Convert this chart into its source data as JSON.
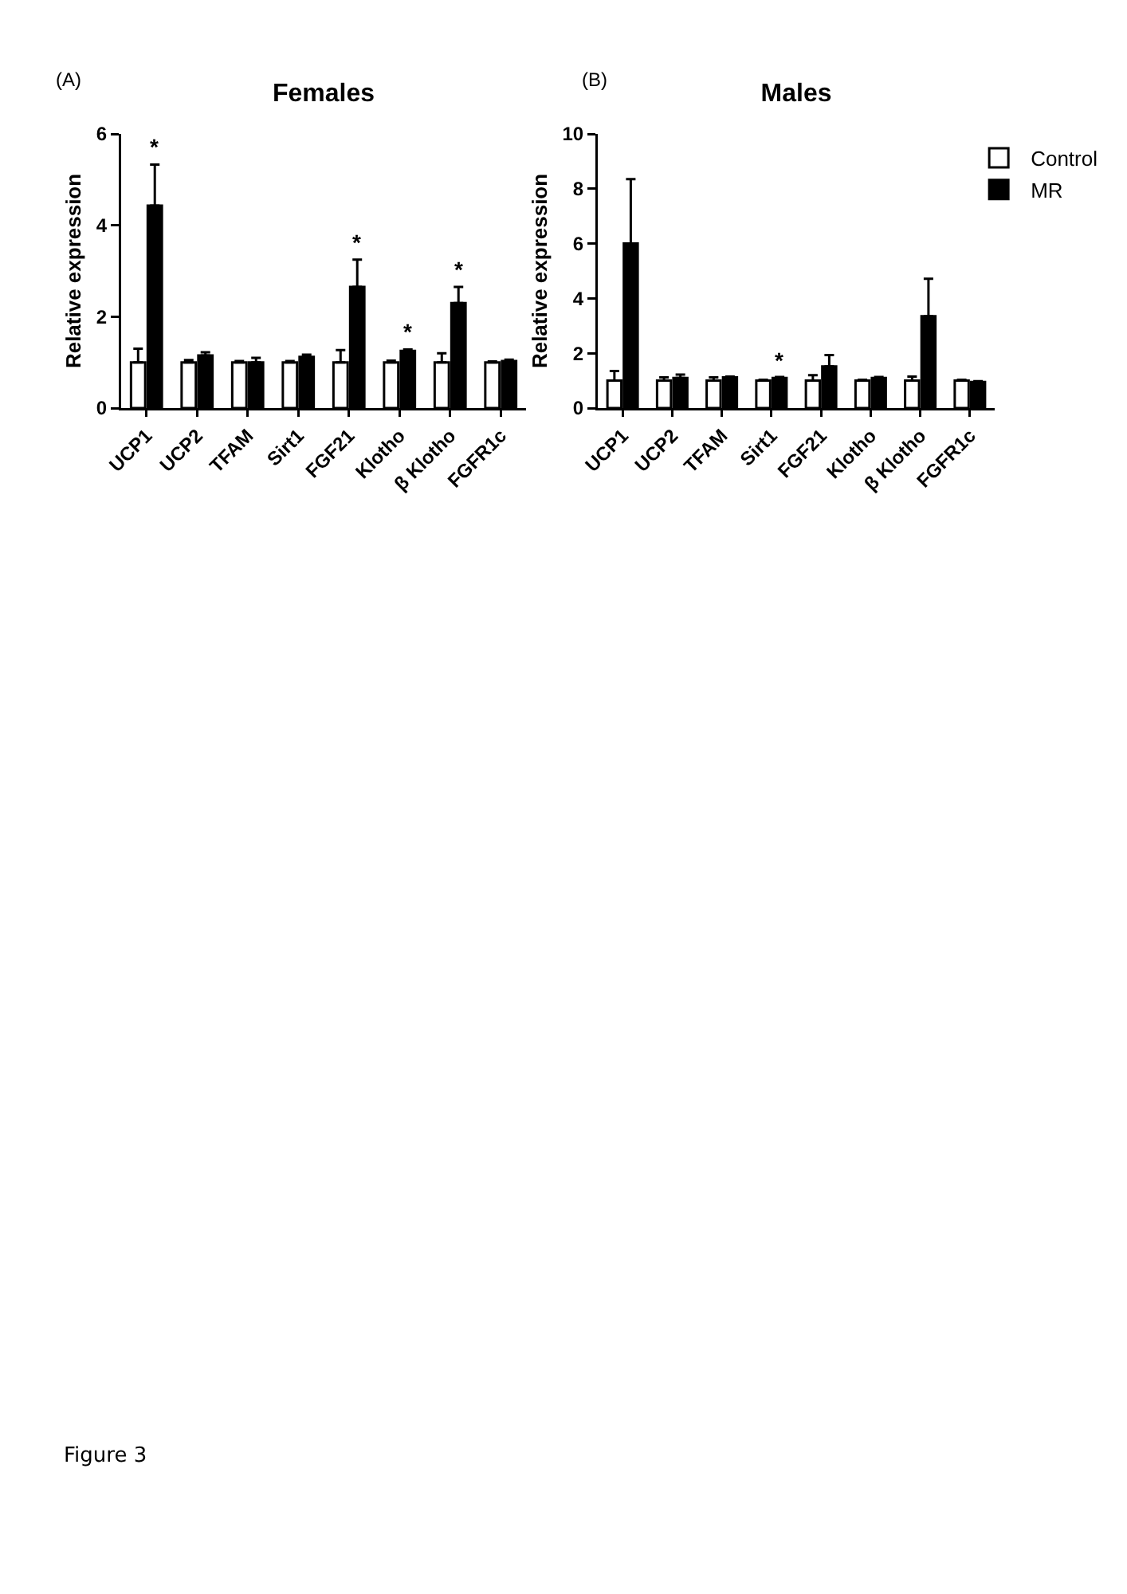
{
  "chart_data": [
    {
      "type": "bar",
      "title": "Females",
      "ylabel": "Relative expression",
      "categories": [
        "UCP1",
        "UCP2",
        "TFAM",
        "Sirt1",
        "FGF21",
        "Klotho",
        "β Klotho",
        "FGFR1c"
      ],
      "series": [
        {
          "color": "#ffffff",
          "values": [
            1.0,
            1.0,
            1.0,
            1.0,
            1.0,
            1.0,
            1.0,
            1.0
          ],
          "errors": [
            [
              1.0,
              1.3
            ],
            [
              1.0,
              1.05
            ],
            [
              1.0,
              1.03
            ],
            [
              1.0,
              1.03
            ],
            [
              1.0,
              1.27
            ],
            [
              1.0,
              1.04
            ],
            [
              1.0,
              1.2
            ],
            [
              1.0,
              1.02
            ]
          ]
        },
        {
          "color": "#000000",
          "values": [
            4.43,
            1.15,
            1.0,
            1.12,
            2.65,
            1.25,
            2.3,
            1.03
          ],
          "errors": [
            [
              4.43,
              5.33
            ],
            [
              1.15,
              1.22
            ],
            [
              1.0,
              1.1
            ],
            [
              1.12,
              1.17
            ],
            [
              2.65,
              3.25
            ],
            [
              1.25,
              1.28
            ],
            [
              2.3,
              2.65
            ],
            [
              1.03,
              1.06
            ]
          ]
        }
      ],
      "ylim": [
        0,
        6
      ],
      "yticks": [
        0,
        2,
        4,
        6
      ],
      "grid": false,
      "legend": false,
      "annotations": [
        "(A)",
        {
          "text": "*",
          "x": "UCP1",
          "y": 5.33
        },
        {
          "text": "*",
          "x": "FGF21",
          "y": 3.25
        },
        {
          "text": "*",
          "x": "Klotho",
          "y": 1.28
        },
        {
          "text": "*",
          "x": "β Klotho",
          "y": 2.65
        },
        "Figure 3"
      ]
    },
    {
      "type": "bar",
      "title": "Males",
      "ylabel": "Relative expression",
      "categories": [
        "UCP1",
        "UCP2",
        "TFAM",
        "Sirt1",
        "FGF21",
        "Klotho",
        "β Klotho",
        "FGFR1c"
      ],
      "series": [
        {
          "name": "Control",
          "color": "#ffffff",
          "values": [
            1.0,
            1.0,
            1.0,
            1.0,
            1.0,
            1.0,
            1.0,
            1.0
          ],
          "errors": [
            [
              1.0,
              1.35
            ],
            [
              1.0,
              1.12
            ],
            [
              1.0,
              1.12
            ],
            [
              1.0,
              1.03
            ],
            [
              1.0,
              1.2
            ],
            [
              1.0,
              1.03
            ],
            [
              1.0,
              1.15
            ],
            [
              1.0,
              1.03
            ]
          ]
        },
        {
          "name": "MR",
          "color": "#000000",
          "values": [
            6.0,
            1.1,
            1.12,
            1.1,
            1.52,
            1.1,
            3.35,
            0.95
          ],
          "errors": [
            [
              6.0,
              8.35
            ],
            [
              1.1,
              1.22
            ],
            [
              1.12,
              1.15
            ],
            [
              1.1,
              1.13
            ],
            [
              1.52,
              1.93
            ],
            [
              1.1,
              1.13
            ],
            [
              3.35,
              4.72
            ],
            [
              0.95,
              0.98
            ]
          ]
        }
      ],
      "ylim": [
        0,
        10
      ],
      "yticks": [
        0,
        2,
        4,
        6,
        8,
        10
      ],
      "grid": false,
      "legend": "top right",
      "annotations": [
        "(B)",
        {
          "text": "*",
          "x": "Sirt1",
          "y": 1.13
        }
      ]
    }
  ]
}
